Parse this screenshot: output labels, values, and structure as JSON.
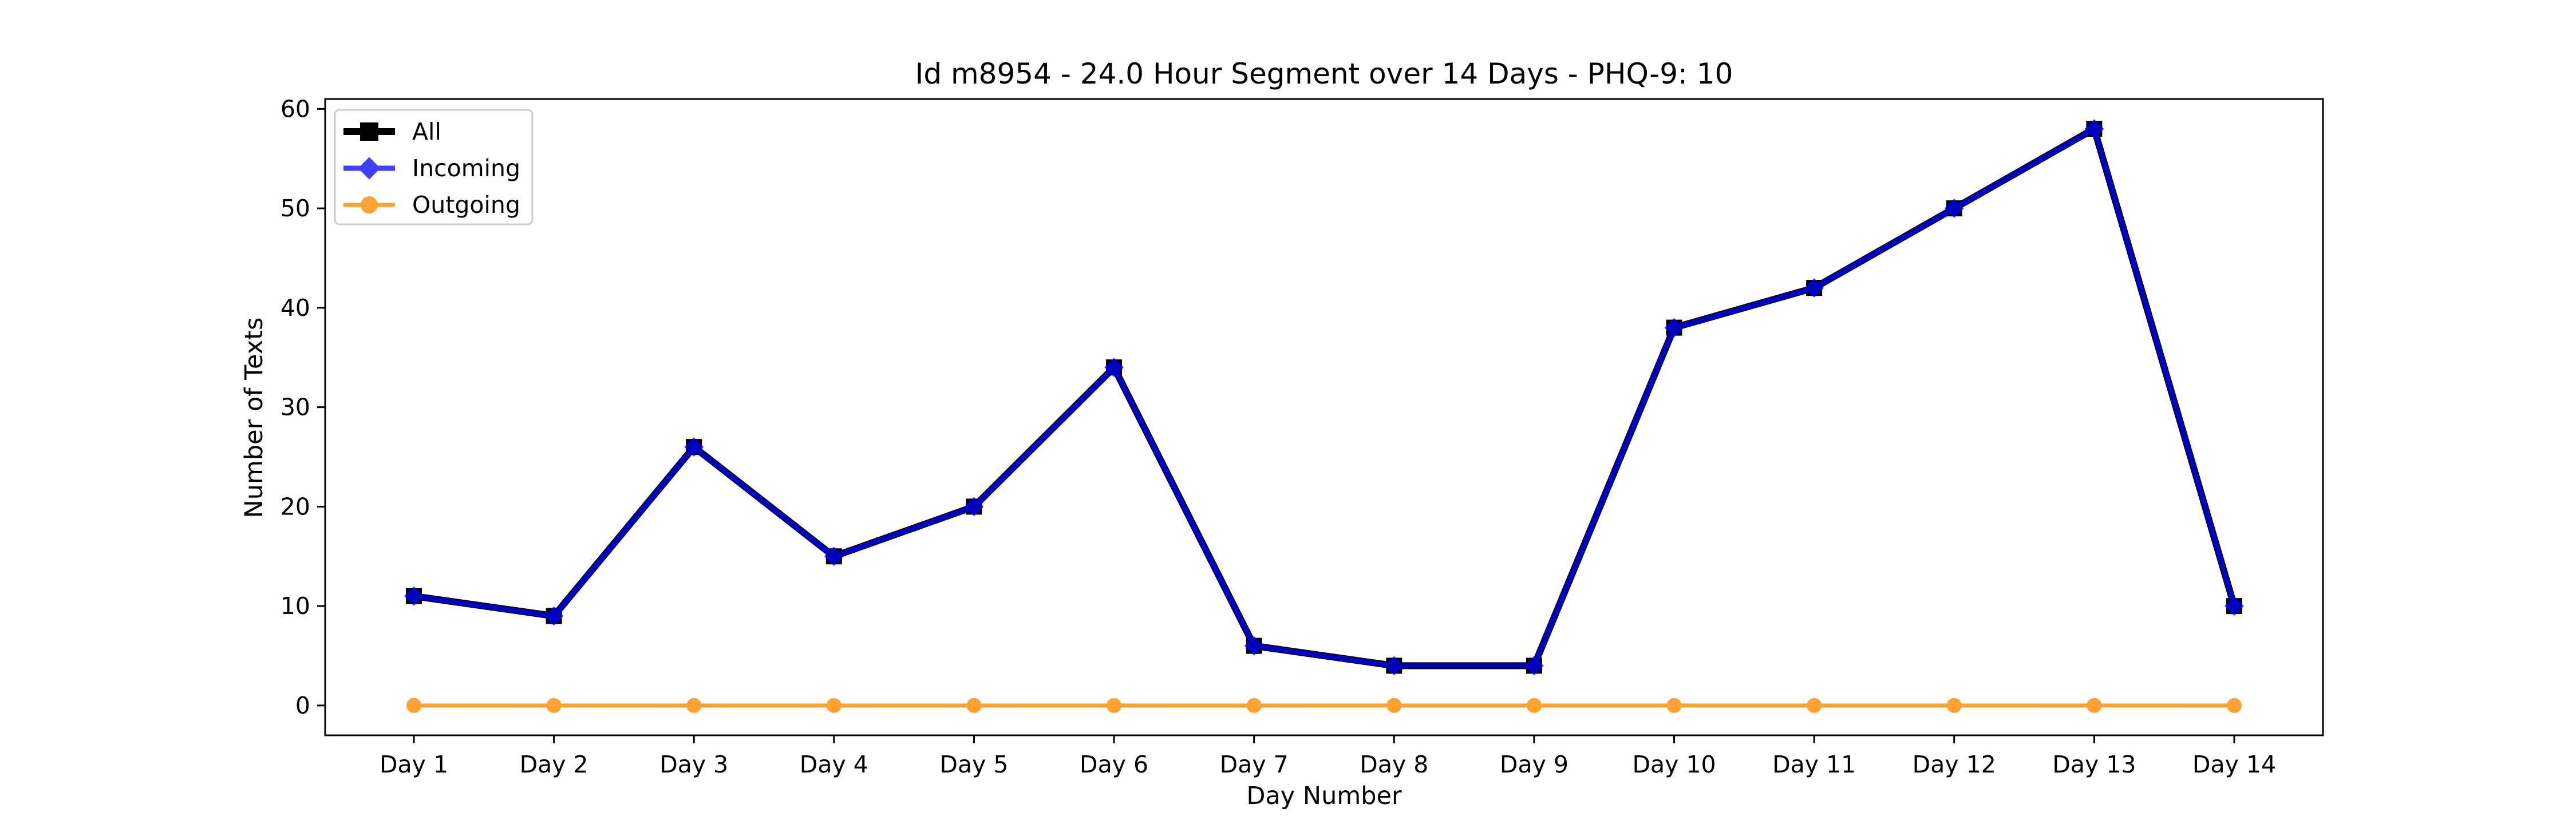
{
  "chart_data": {
    "type": "line",
    "title": "Id m8954 - 24.0 Hour Segment over 14 Days - PHQ-9: 10",
    "xlabel": "Day Number",
    "ylabel": "Number of Texts",
    "categories": [
      "Day 1",
      "Day 2",
      "Day 3",
      "Day 4",
      "Day 5",
      "Day 6",
      "Day 7",
      "Day 8",
      "Day 9",
      "Day 10",
      "Day 11",
      "Day 12",
      "Day 13",
      "Day 14"
    ],
    "ylim": [
      -3,
      61
    ],
    "yticks": [
      0,
      10,
      20,
      30,
      40,
      50,
      60
    ],
    "grid": false,
    "legend_position": "top-left",
    "series": [
      {
        "name": "All",
        "values": [
          11,
          9,
          26,
          15,
          20,
          34,
          6,
          4,
          4,
          38,
          42,
          50,
          58,
          10
        ],
        "color": "#000000",
        "marker": "square"
      },
      {
        "name": "Incoming",
        "values": [
          11,
          9,
          26,
          15,
          20,
          34,
          6,
          4,
          4,
          38,
          42,
          50,
          58,
          10
        ],
        "color": "#0000ff",
        "marker": "diamond"
      },
      {
        "name": "Outgoing",
        "values": [
          0,
          0,
          0,
          0,
          0,
          0,
          0,
          0,
          0,
          0,
          0,
          0,
          0,
          0
        ],
        "color": "#ff8c00",
        "marker": "circle"
      }
    ]
  }
}
